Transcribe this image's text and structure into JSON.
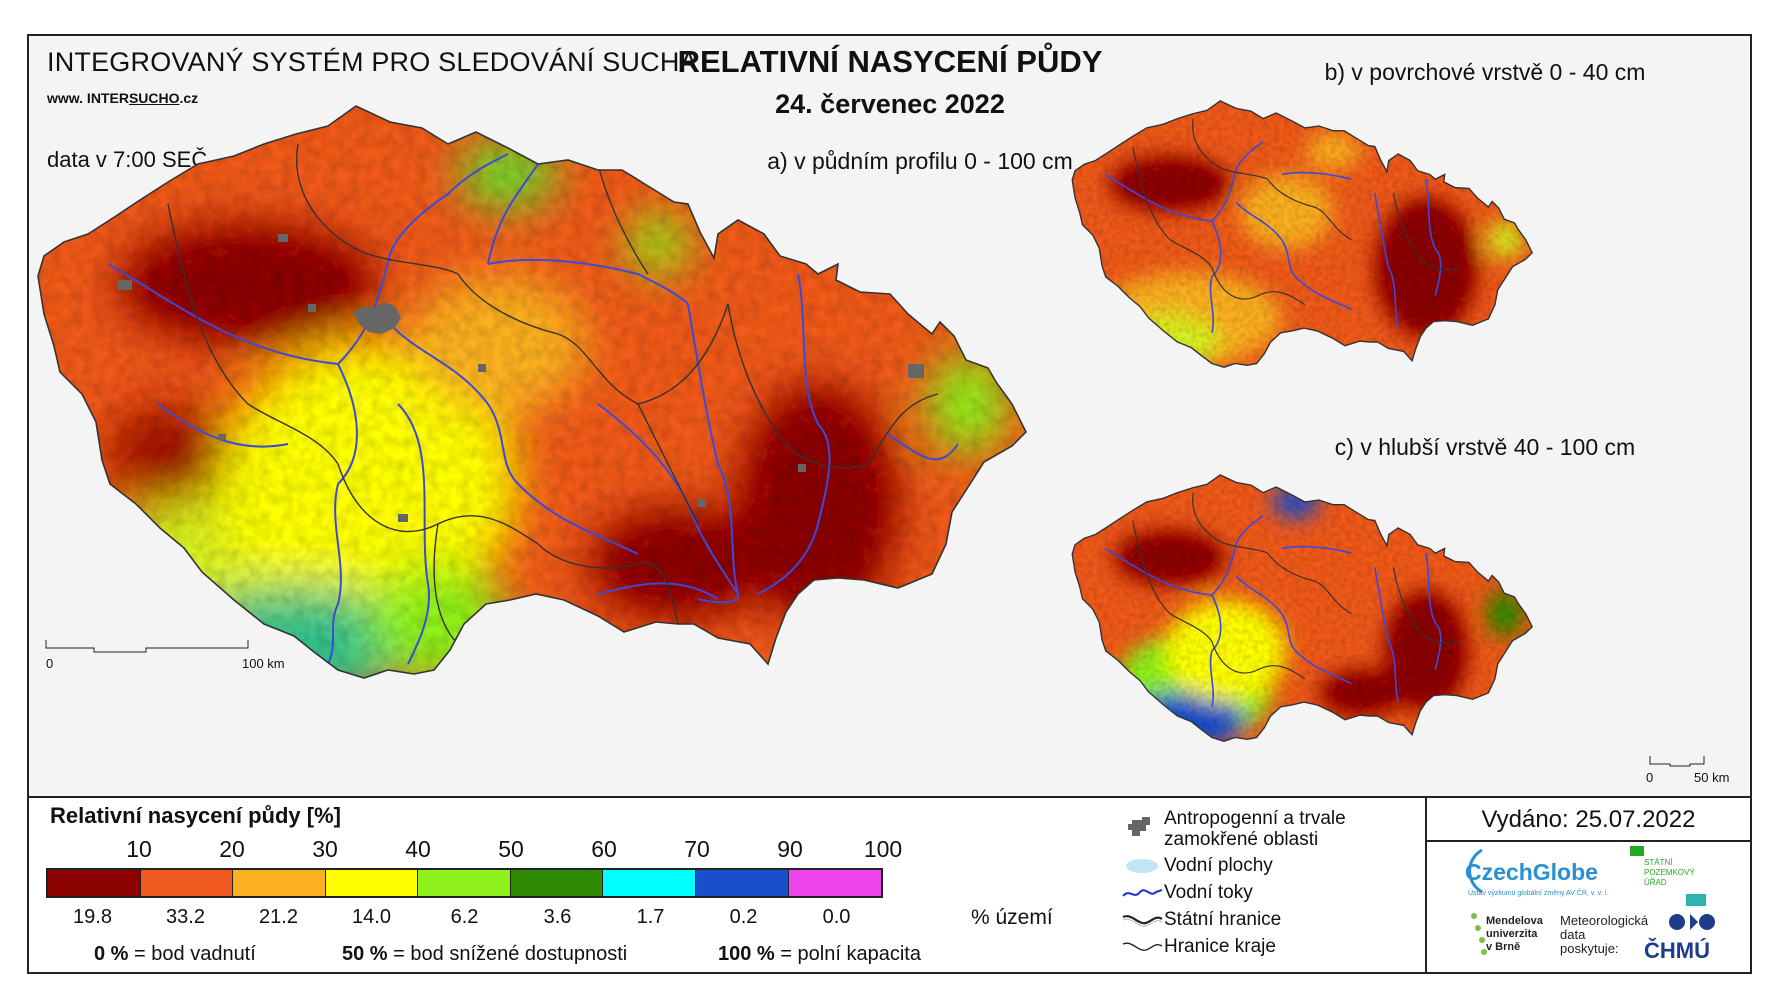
{
  "header": {
    "system_title": "INTEGROVANÝ SYSTÉM PRO SLEDOVÁNÍ SUCHA",
    "url_prefix": "www. INTER",
    "url_underlined": "SUCHO",
    "url_suffix": ".cz",
    "data_time": "data v 7:00 SEČ",
    "title": "RELATIVNÍ NASYCENÍ PŮDY",
    "date": "24. červenec 2022"
  },
  "maps": {
    "a": {
      "subtitle": "a) v půdním profilu 0 - 100 cm",
      "scale_start": "0",
      "scale_end": "100 km"
    },
    "b": {
      "subtitle": "b) v povrchové vrstvě 0 - 40 cm"
    },
    "c": {
      "subtitle": "c) v hlubší vrstvě 40 - 100 cm",
      "scale_start": "0",
      "scale_end": "50 km"
    }
  },
  "legend": {
    "title": "Relativní nasycení půdy [%]",
    "ticks": [
      "10",
      "20",
      "30",
      "40",
      "50",
      "60",
      "70",
      "90",
      "100"
    ],
    "classes": [
      {
        "color": "#8b0000",
        "percent": "19.8"
      },
      {
        "color": "#f05a1e",
        "percent": "33.2"
      },
      {
        "color": "#fbb021",
        "percent": "21.2"
      },
      {
        "color": "#ffff00",
        "percent": "14.0"
      },
      {
        "color": "#8ff21c",
        "percent": "6.2"
      },
      {
        "color": "#2e8a00",
        "percent": "3.6"
      },
      {
        "color": "#00ffff",
        "percent": "1.7"
      },
      {
        "color": "#1a4fcc",
        "percent": "0.2"
      },
      {
        "color": "#ee44ee",
        "percent": "0.0"
      }
    ],
    "percent_unit": "% území",
    "defs": [
      {
        "value": "0 %",
        "label": "= bod vadnutí"
      },
      {
        "value": "50 %",
        "label": "= bod snížené dostupnosti"
      },
      {
        "value": "100 %",
        "label": "= polní kapacita"
      }
    ]
  },
  "symbols": {
    "anthropogenic_line1": "Antropogenní a trvale",
    "anthropogenic_line2": "zamokřené oblasti",
    "water_bodies": "Vodní plochy",
    "rivers": "Vodní toky",
    "state_border": "Státní hranice",
    "region_border": "Hranice kraje"
  },
  "footer": {
    "issued": "Vydáno: 25.07.2022",
    "czechglobe": "CzechGlobe",
    "czechglobe_sub": "Ústav výzkumu globální změny AV ČR, v. v. i.",
    "spu_line1": "STÁTNÍ",
    "spu_line2": "POZEMKOVÝ",
    "spu_line3": "ÚŘAD",
    "mendel_line1": "Mendelova",
    "mendel_line2": "univerzita",
    "mendel_line3": "v Brně",
    "meteo_line1": "Meteorologická",
    "meteo_line2": "data",
    "meteo_line3": "poskytuje:",
    "chmu": "ČHMÚ"
  },
  "colors": {
    "water": "#bfe6f2",
    "river": "#3b4bd8",
    "urban": "#666666",
    "border": "#333333"
  }
}
